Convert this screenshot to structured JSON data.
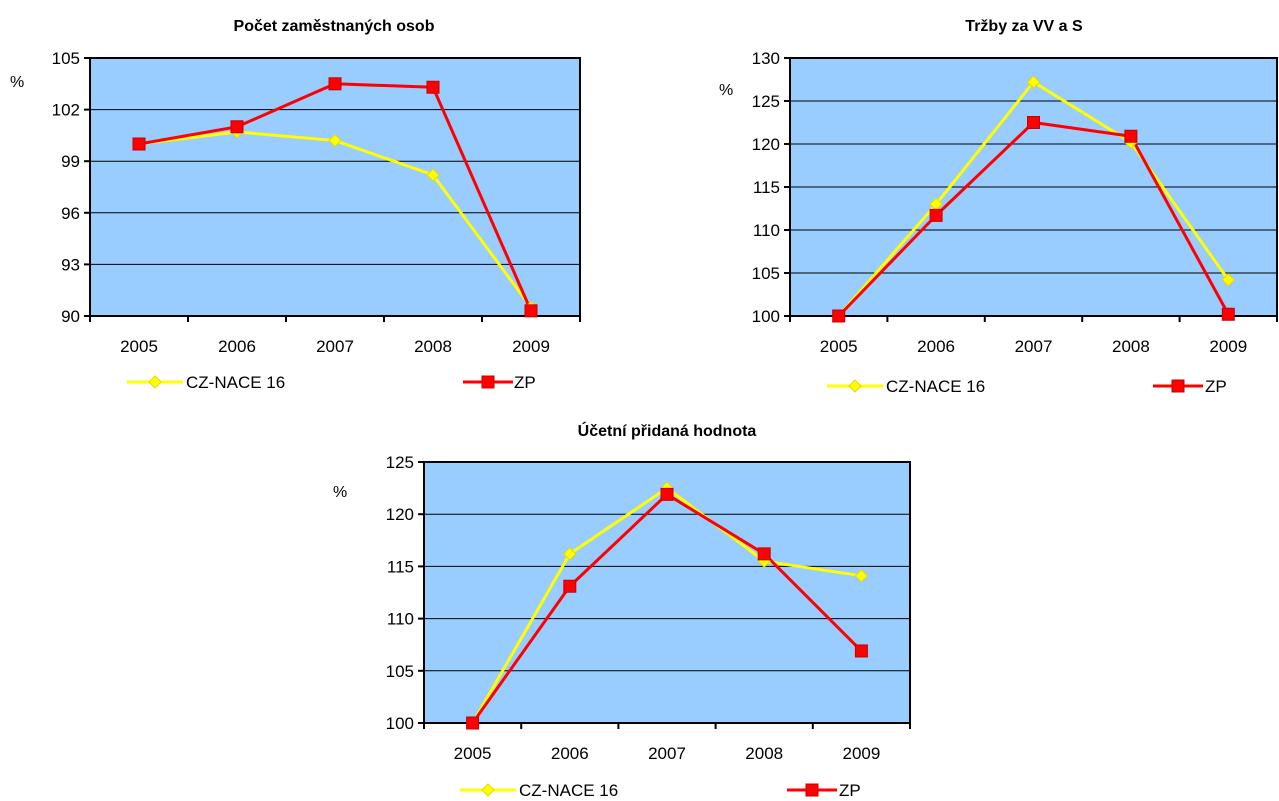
{
  "colors": {
    "plot_bg": "#99CCFF",
    "series_a": "#FFFF00",
    "series_b": "#FF0000",
    "axis": "#000000",
    "grid": "#000000"
  },
  "chart_data": [
    {
      "type": "line",
      "title": "Počet zaměstnaných osob",
      "ylabel": "%",
      "categories": [
        "2005",
        "2006",
        "2007",
        "2008",
        "2009"
      ],
      "ylim": [
        90,
        105
      ],
      "yticks": [
        "90",
        "93",
        "96",
        "99",
        "102",
        "105"
      ],
      "grid": true,
      "legend_position": "bottom",
      "series": [
        {
          "name": "CZ-NACE 16",
          "marker": "diamond",
          "values": [
            100.0,
            100.7,
            100.2,
            98.2,
            90.5
          ]
        },
        {
          "name": "ZP",
          "marker": "square",
          "values": [
            100.0,
            101.0,
            103.5,
            103.3,
            90.3
          ]
        }
      ]
    },
    {
      "type": "line",
      "title": "Tržby za VV a S",
      "ylabel": "%",
      "categories": [
        "2005",
        "2006",
        "2007",
        "2008",
        "2009"
      ],
      "ylim": [
        100,
        130
      ],
      "yticks": [
        "100",
        "105",
        "110",
        "115",
        "120",
        "125",
        "130"
      ],
      "grid": true,
      "legend_position": "bottom",
      "series": [
        {
          "name": "CZ-NACE 16",
          "marker": "diamond",
          "values": [
            100.0,
            113.0,
            127.2,
            120.2,
            104.2
          ]
        },
        {
          "name": "ZP",
          "marker": "square",
          "values": [
            100.0,
            111.7,
            122.5,
            120.9,
            100.2
          ]
        }
      ]
    },
    {
      "type": "line",
      "title": "Účetní přidaná hodnota",
      "ylabel": "%",
      "categories": [
        "2005",
        "2006",
        "2007",
        "2008",
        "2009"
      ],
      "ylim": [
        100,
        125
      ],
      "yticks": [
        "100",
        "105",
        "110",
        "115",
        "120",
        "125"
      ],
      "grid": true,
      "legend_position": "bottom",
      "series": [
        {
          "name": "CZ-NACE 16",
          "marker": "diamond",
          "values": [
            100.0,
            116.2,
            122.5,
            115.5,
            114.1
          ]
        },
        {
          "name": "ZP",
          "marker": "square",
          "values": [
            100.0,
            113.1,
            121.9,
            116.2,
            106.9
          ]
        }
      ]
    }
  ]
}
